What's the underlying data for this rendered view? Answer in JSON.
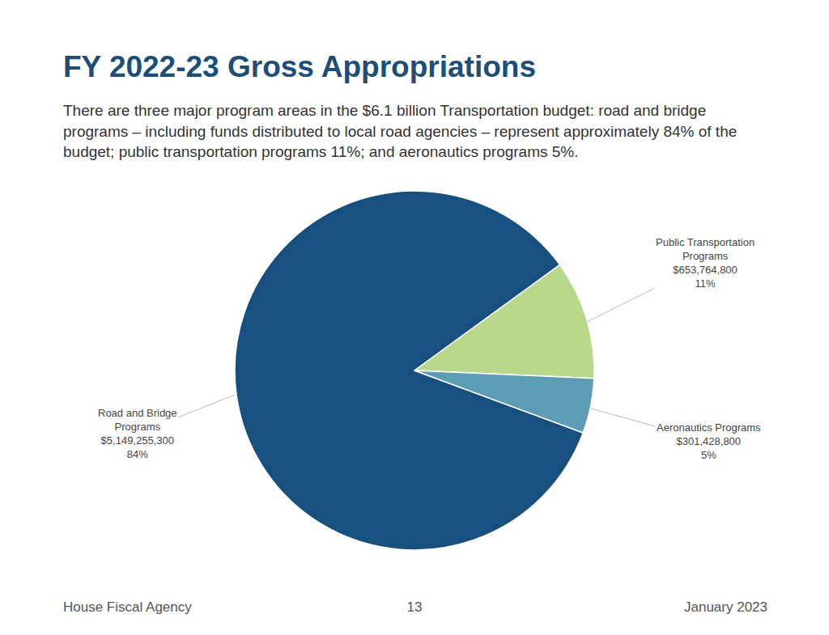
{
  "chart_data": {
    "type": "pie",
    "title": "FY 2022-23 Gross Appropriations",
    "subtitle": "There are three major program areas in the $6.1 billion Transportation budget: road and bridge programs – including funds distributed to local road agencies – represent approximately 84% of the budget; public transportation programs 11%; and aeronautics programs 5%.",
    "categories": [
      "Road and Bridge Programs",
      "Public Transportation Programs",
      "Aeronautics Programs"
    ],
    "values": [
      5149255300,
      653764800,
      301428800
    ],
    "value_labels": [
      "$5,149,255,300",
      "$653,764,800",
      "$301,428,800"
    ],
    "percent_labels": [
      "84%",
      "11%",
      "5%"
    ],
    "colors": [
      "#17507e",
      "#b8d98c",
      "#5c9db5"
    ]
  },
  "footer": {
    "left": "House Fiscal Agency",
    "center": "13",
    "right": "January 2023"
  }
}
